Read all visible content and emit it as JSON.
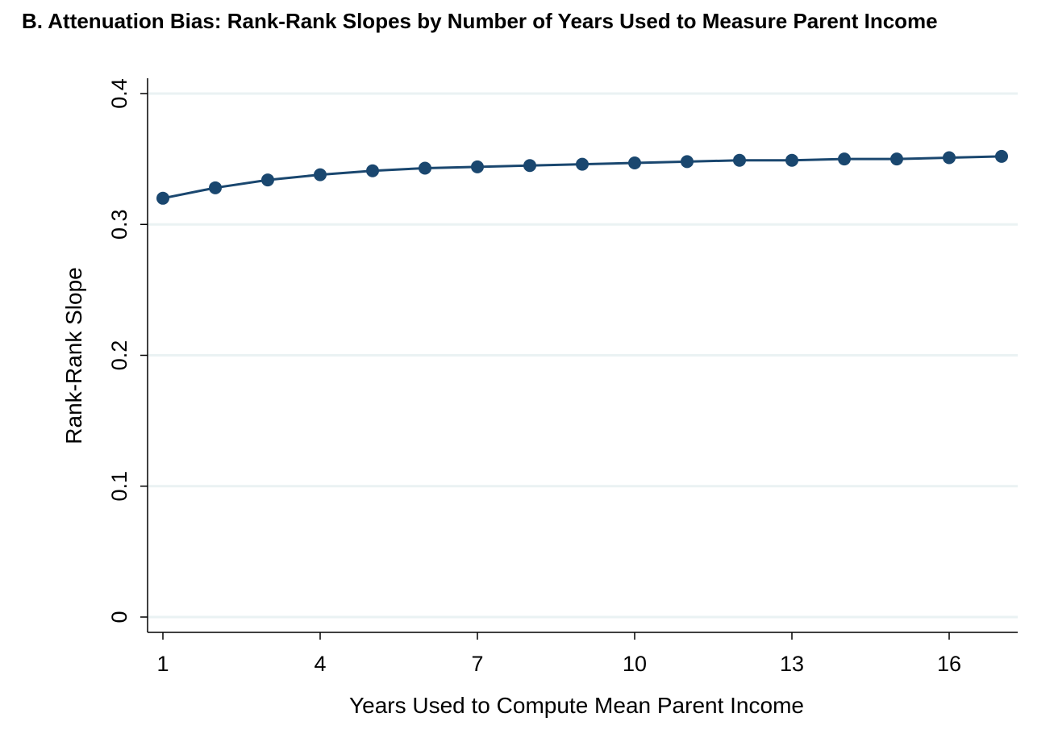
{
  "chart_data": {
    "type": "line",
    "title": "B. Attenuation Bias: Rank-Rank Slopes by Number of Years Used to Measure Parent Income",
    "xlabel": "Years Used to Compute Mean Parent Income",
    "ylabel": "Rank-Rank Slope",
    "x": [
      1,
      2,
      3,
      4,
      5,
      6,
      7,
      8,
      9,
      10,
      11,
      12,
      13,
      14,
      15,
      16,
      17
    ],
    "series": [
      {
        "values": [
          0.32,
          0.328,
          0.334,
          0.338,
          0.341,
          0.343,
          0.344,
          0.345,
          0.346,
          0.347,
          0.348,
          0.349,
          0.349,
          0.35,
          0.35,
          0.351,
          0.352
        ]
      }
    ],
    "xlim": [
      1,
      17
    ],
    "ylim": [
      0,
      0.4
    ],
    "xticks": [
      1,
      4,
      7,
      10,
      13,
      16
    ],
    "xtick_labels": [
      "1",
      "4",
      "7",
      "10",
      "13",
      "16"
    ],
    "yticks": [
      0,
      0.1,
      0.2,
      0.3,
      0.4
    ],
    "ytick_labels": [
      "0",
      "0.1",
      "0.2",
      "0.3",
      "0.4"
    ],
    "grid": true,
    "colors": {
      "series": "#1a476f",
      "grid": "#eaf2f3",
      "axis": "#000000"
    }
  }
}
